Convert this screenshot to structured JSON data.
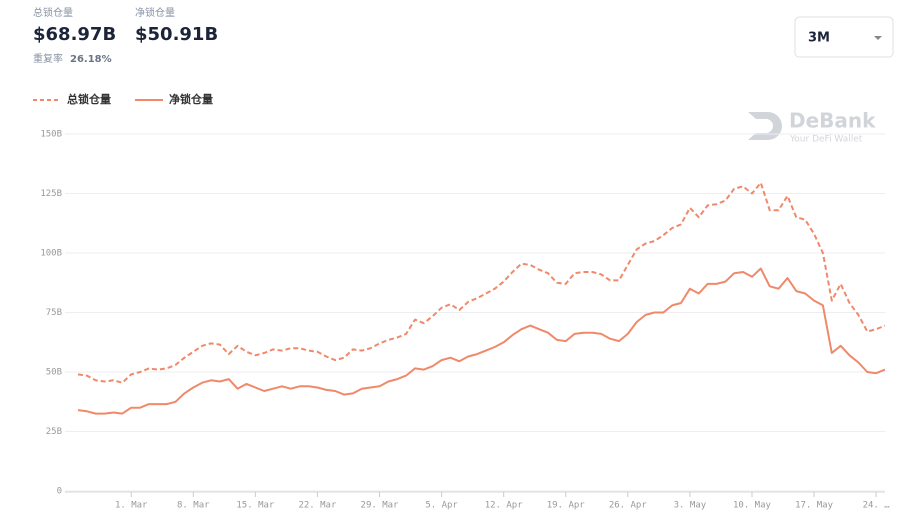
{
  "header": {
    "total_label": "总锁仓量",
    "total_value": "$68.97B",
    "net_label": "净锁仓量",
    "net_value": "$50.91B",
    "repeat_label": "重复率",
    "repeat_value": "26.18%"
  },
  "range_selector": "3M",
  "watermark": {
    "brand": "DeBank",
    "tagline": "Your DeFi Wallet"
  },
  "chart_data": {
    "type": "line",
    "categories": [
      null,
      null,
      null,
      null,
      null,
      null,
      "1. Mar",
      null,
      null,
      null,
      null,
      null,
      null,
      "8. Mar",
      null,
      null,
      null,
      null,
      null,
      null,
      "15. Mar",
      null,
      null,
      null,
      null,
      null,
      null,
      "22. Mar",
      null,
      null,
      null,
      null,
      null,
      null,
      "29. Mar",
      null,
      null,
      null,
      null,
      null,
      null,
      "5. Apr",
      null,
      null,
      null,
      null,
      null,
      null,
      "12. Apr",
      null,
      null,
      null,
      null,
      null,
      null,
      "19. Apr",
      null,
      null,
      null,
      null,
      null,
      null,
      "26. Apr",
      null,
      null,
      null,
      null,
      null,
      null,
      "3. May",
      null,
      null,
      null,
      null,
      null,
      null,
      "10. May",
      null,
      null,
      null,
      null,
      null,
      null,
      "17. May",
      null,
      null,
      null,
      null,
      null,
      null,
      "24. …",
      null
    ],
    "series": [
      {
        "name": "总锁仓量",
        "color": "#f0896a",
        "dashed": true,
        "values": [
          49,
          48.5,
          46.5,
          46,
          46.5,
          45.5,
          49,
          50,
          51.5,
          51,
          51.5,
          53,
          56,
          58.5,
          61,
          62,
          61.5,
          57.5,
          61,
          58.5,
          57,
          58,
          59.5,
          59,
          60,
          60,
          59,
          58.5,
          56.5,
          55,
          56,
          59.5,
          59,
          60,
          62,
          63.5,
          64.5,
          66,
          72,
          70.5,
          73.5,
          77,
          78.5,
          76,
          79.5,
          81,
          83,
          85,
          88,
          92,
          95.5,
          95,
          93,
          91.5,
          87.5,
          87,
          91.5,
          92,
          92,
          91,
          88.5,
          88.5,
          95,
          101.5,
          104,
          105,
          107.5,
          110.5,
          112,
          119,
          115,
          120,
          120.5,
          122,
          127,
          128,
          125,
          129.5,
          118,
          118,
          124,
          115,
          114,
          108,
          100,
          80,
          87,
          79,
          74,
          67,
          68,
          69.5
        ]
      },
      {
        "name": "净锁仓量",
        "color": "#f0896a",
        "dashed": false,
        "values": [
          34,
          33.5,
          32.5,
          32.5,
          33,
          32.5,
          35,
          35,
          36.5,
          36.5,
          36.5,
          37.5,
          41,
          43.5,
          45.5,
          46.5,
          46,
          47,
          43,
          45,
          43.5,
          42,
          43,
          44,
          43,
          44,
          44,
          43.5,
          42.5,
          42,
          40.5,
          41,
          43,
          43.5,
          44,
          46,
          47,
          48.5,
          51.5,
          51,
          52.5,
          55,
          56,
          54.5,
          56.5,
          57.5,
          59,
          60.5,
          62.5,
          65.5,
          68,
          69.5,
          68,
          66.5,
          63.5,
          63,
          66,
          66.5,
          66.5,
          66,
          64,
          63,
          66,
          71,
          74,
          75,
          75,
          78,
          79,
          85,
          83,
          87,
          87,
          88,
          91.5,
          92,
          90,
          93.5,
          86,
          85,
          89.5,
          84,
          83,
          80,
          78,
          58,
          61,
          57,
          54,
          50,
          49.5,
          51
        ]
      }
    ],
    "ylim": [
      0,
      150
    ],
    "yticks": [
      {
        "value": 0,
        "label": "0"
      },
      {
        "value": 25,
        "label": "25B"
      },
      {
        "value": 50,
        "label": "50B"
      },
      {
        "value": 75,
        "label": "75B"
      },
      {
        "value": 100,
        "label": "100B"
      },
      {
        "value": 125,
        "label": "125B"
      },
      {
        "value": 150,
        "label": "150B"
      }
    ],
    "grid": true
  }
}
